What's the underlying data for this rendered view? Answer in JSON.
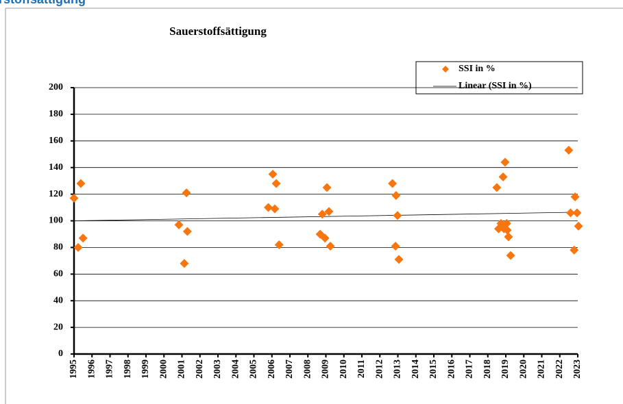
{
  "header": {
    "title": "rstoffsättigung"
  },
  "chart_data": {
    "type": "scatter",
    "title": "Sauerstoffsättigung",
    "series": [
      {
        "name": "SSI in %",
        "color": "#f7760f",
        "x": [
          1995.0,
          1995.23,
          1995.38,
          1995.5,
          2000.83,
          2001.13,
          2001.25,
          2001.3,
          2005.8,
          2006.05,
          2006.16,
          2006.24,
          2006.4,
          2008.68,
          2008.8,
          2008.95,
          2009.06,
          2009.17,
          2009.25,
          2012.7,
          2012.87,
          2012.9,
          2012.98,
          2013.06,
          2018.5,
          2018.6,
          2018.73,
          2018.85,
          2018.96,
          2018.9,
          2019.05,
          2019.08,
          2019.15,
          2019.27,
          2022.5,
          2022.6,
          2022.8,
          2022.85,
          2022.96,
          2023.04
        ],
        "values": [
          117,
          80,
          128,
          87,
          97,
          68,
          121,
          92,
          110,
          135,
          109,
          128,
          82,
          90,
          105,
          87,
          125,
          107,
          81,
          128,
          81,
          119,
          104,
          71,
          125,
          94,
          98,
          133,
          144,
          94,
          98,
          93,
          88,
          74,
          153,
          106,
          78,
          118,
          106,
          96
        ]
      }
    ],
    "trendline": {
      "name": "Linear (SSI in %)",
      "color": "#000000",
      "x": [
        1995,
        2023
      ],
      "values": [
        100,
        106.5
      ]
    },
    "xlim": [
      1995,
      2023
    ],
    "xticks": [
      1995,
      1996,
      1997,
      1998,
      1999,
      2000,
      2001,
      2002,
      2003,
      2004,
      2005,
      2006,
      2007,
      2008,
      2009,
      2010,
      2011,
      2012,
      2013,
      2014,
      2015,
      2016,
      2017,
      2018,
      2019,
      2020,
      2021,
      2022,
      2023
    ],
    "ylim": [
      0,
      200
    ],
    "yticks": [
      0,
      20,
      40,
      60,
      80,
      100,
      120,
      140,
      160,
      180,
      200
    ],
    "grid": true,
    "legend": "top-right"
  }
}
